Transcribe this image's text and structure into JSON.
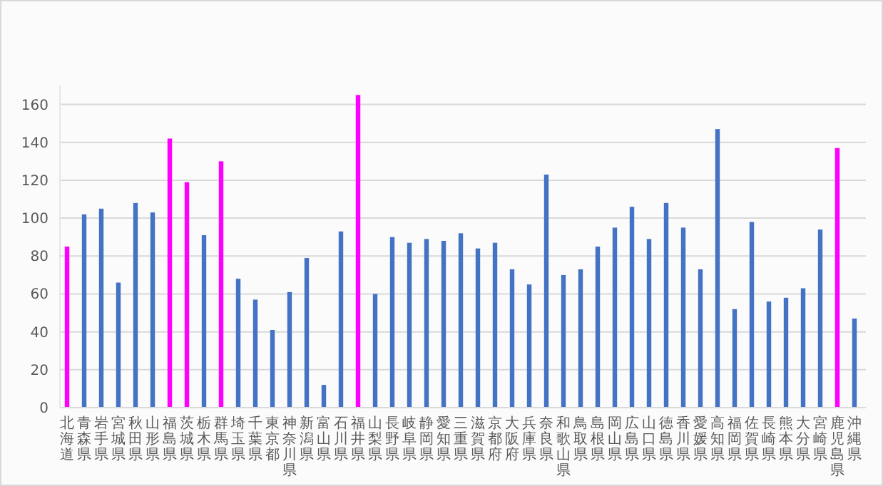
{
  "chart_data": {
    "type": "bar",
    "categories": [
      "北海道",
      "青森県",
      "岩手県",
      "宮城県",
      "秋田県",
      "山形県",
      "福島県",
      "茨城県",
      "栃木県",
      "群馬県",
      "埼玉県",
      "千葉県",
      "東京都",
      "神奈川県",
      "新潟県",
      "富山県",
      "石川県",
      "福井県",
      "山梨県",
      "長野県",
      "岐阜県",
      "静岡県",
      "愛知県",
      "三重県",
      "滋賀県",
      "京都府",
      "大阪府",
      "兵庫県",
      "奈良県",
      "和歌山県",
      "鳥取県",
      "島根県",
      "岡山県",
      "広島県",
      "山口県",
      "徳島県",
      "香川県",
      "愛媛県",
      "高知県",
      "福岡県",
      "佐賀県",
      "長崎県",
      "熊本県",
      "大分県",
      "宮崎県",
      "鹿児島県",
      "沖縄県"
    ],
    "values": [
      85,
      102,
      105,
      66,
      108,
      103,
      142,
      119,
      91,
      130,
      68,
      57,
      41,
      61,
      79,
      12,
      93,
      165,
      60,
      90,
      87,
      89,
      88,
      92,
      84,
      87,
      73,
      65,
      123,
      70,
      73,
      85,
      95,
      106,
      89,
      108,
      95,
      73,
      147,
      52,
      98,
      56,
      58,
      63,
      94,
      137,
      47
    ],
    "colors": [
      "#ff00ff",
      "#4472c4",
      "#4472c4",
      "#4472c4",
      "#4472c4",
      "#4472c4",
      "#ff00ff",
      "#ff00ff",
      "#4472c4",
      "#ff00ff",
      "#4472c4",
      "#4472c4",
      "#4472c4",
      "#4472c4",
      "#4472c4",
      "#4472c4",
      "#4472c4",
      "#ff00ff",
      "#4472c4",
      "#4472c4",
      "#4472c4",
      "#4472c4",
      "#4472c4",
      "#4472c4",
      "#4472c4",
      "#4472c4",
      "#4472c4",
      "#4472c4",
      "#4472c4",
      "#4472c4",
      "#4472c4",
      "#4472c4",
      "#4472c4",
      "#4472c4",
      "#4472c4",
      "#4472c4",
      "#4472c4",
      "#4472c4",
      "#4472c4",
      "#4472c4",
      "#4472c4",
      "#4472c4",
      "#4472c4",
      "#4472c4",
      "#4472c4",
      "#ff00ff",
      "#4472c4"
    ],
    "ylim": [
      0,
      170
    ],
    "yticks": [
      0,
      20,
      40,
      60,
      80,
      100,
      120,
      140,
      160
    ],
    "grid": "y"
  }
}
